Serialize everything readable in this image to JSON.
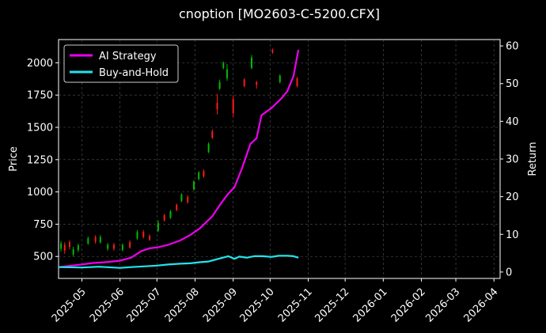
{
  "chart_data": {
    "type": "line",
    "title": "cnoption [MO2603-C-5200.CFX]",
    "ylabel_left": "Price",
    "ylabel_right": "Return",
    "x_ticks": [
      "2025-05",
      "2025-06",
      "2025-07",
      "2025-08",
      "2025-09",
      "2025-10",
      "2025-11",
      "2025-12",
      "2026-01",
      "2026-02",
      "2026-03",
      "2026-04"
    ],
    "x_range": [
      "2025-04-12",
      "2026-04-06"
    ],
    "y_left_ticks": [
      500,
      750,
      1000,
      1250,
      1500,
      1750,
      2000
    ],
    "y_left_range": [
      330,
      2180
    ],
    "y_right_ticks": [
      0,
      10,
      20,
      30,
      40,
      50,
      60
    ],
    "y_right_range": [
      -1.7,
      61.7
    ],
    "grid": true,
    "legend_position": "top-left",
    "colors": {
      "ai_strategy": "#ee00ee",
      "buy_and_hold": "#22e5ee",
      "candle_up": "#00bb00",
      "candle_down": "#ff1a1a"
    },
    "series": [
      {
        "name": "AI Strategy",
        "axis": "right",
        "x": [
          "2025-04-12",
          "2025-05-01",
          "2025-05-10",
          "2025-05-20",
          "2025-06-01",
          "2025-06-10",
          "2025-06-18",
          "2025-06-25",
          "2025-07-01",
          "2025-07-10",
          "2025-07-20",
          "2025-07-28",
          "2025-08-05",
          "2025-08-15",
          "2025-08-22",
          "2025-08-28",
          "2025-09-02",
          "2025-09-08",
          "2025-09-15",
          "2025-09-20",
          "2025-09-24",
          "2025-10-02",
          "2025-10-10",
          "2025-10-15",
          "2025-10-20",
          "2025-10-24"
        ],
        "y": [
          1.3,
          2.0,
          2.4,
          2.6,
          3.0,
          3.8,
          5.5,
          6.3,
          6.5,
          7.2,
          8.4,
          9.8,
          11.6,
          14.8,
          18.2,
          20.8,
          22.5,
          27.4,
          34.0,
          35.5,
          41.6,
          43.5,
          46.0,
          48.0,
          52.0,
          59.0
        ]
      },
      {
        "name": "Buy-and-Hold",
        "axis": "right",
        "x": [
          "2025-04-12",
          "2025-05-01",
          "2025-05-15",
          "2025-06-01",
          "2025-06-10",
          "2025-06-20",
          "2025-07-01",
          "2025-07-10",
          "2025-07-20",
          "2025-07-28",
          "2025-08-05",
          "2025-08-12",
          "2025-08-20",
          "2025-08-28",
          "2025-09-02",
          "2025-09-06",
          "2025-09-12",
          "2025-09-18",
          "2025-09-25",
          "2025-10-02",
          "2025-10-08",
          "2025-10-15",
          "2025-10-20",
          "2025-10-24"
        ],
        "y": [
          1.3,
          1.2,
          1.4,
          1.1,
          1.3,
          1.5,
          1.7,
          2.0,
          2.2,
          2.3,
          2.6,
          2.8,
          3.5,
          4.2,
          3.5,
          4.1,
          3.8,
          4.2,
          4.2,
          4.0,
          4.3,
          4.3,
          4.2,
          3.8
        ]
      }
    ],
    "candles": [
      {
        "date": "2025-04-14",
        "open": 560,
        "close": 600,
        "high": 620,
        "low": 540
      },
      {
        "date": "2025-04-17",
        "open": 590,
        "close": 545,
        "high": 610,
        "low": 520
      },
      {
        "date": "2025-04-21",
        "open": 610,
        "close": 575,
        "high": 625,
        "low": 555
      },
      {
        "date": "2025-04-24",
        "open": 515,
        "close": 555,
        "high": 575,
        "low": 500
      },
      {
        "date": "2025-04-28",
        "open": 550,
        "close": 585,
        "high": 600,
        "low": 535
      },
      {
        "date": "2025-05-06",
        "open": 600,
        "close": 640,
        "high": 655,
        "low": 590
      },
      {
        "date": "2025-05-12",
        "open": 650,
        "close": 615,
        "high": 665,
        "low": 600
      },
      {
        "date": "2025-05-16",
        "open": 610,
        "close": 650,
        "high": 665,
        "low": 600
      },
      {
        "date": "2025-05-22",
        "open": 560,
        "close": 590,
        "high": 605,
        "low": 545
      },
      {
        "date": "2025-05-27",
        "open": 590,
        "close": 560,
        "high": 605,
        "low": 545
      },
      {
        "date": "2025-06-03",
        "open": 550,
        "close": 590,
        "high": 600,
        "low": 540
      },
      {
        "date": "2025-06-09",
        "open": 610,
        "close": 570,
        "high": 625,
        "low": 560
      },
      {
        "date": "2025-06-15",
        "open": 640,
        "close": 690,
        "high": 705,
        "low": 630
      },
      {
        "date": "2025-06-20",
        "open": 690,
        "close": 650,
        "high": 705,
        "low": 640
      },
      {
        "date": "2025-06-25",
        "open": 660,
        "close": 630,
        "high": 670,
        "low": 620
      },
      {
        "date": "2025-07-02",
        "open": 700,
        "close": 760,
        "high": 780,
        "low": 690
      },
      {
        "date": "2025-07-07",
        "open": 820,
        "close": 780,
        "high": 830,
        "low": 770
      },
      {
        "date": "2025-07-12",
        "open": 800,
        "close": 850,
        "high": 860,
        "low": 790
      },
      {
        "date": "2025-07-17",
        "open": 900,
        "close": 860,
        "high": 910,
        "low": 850
      },
      {
        "date": "2025-07-21",
        "open": 930,
        "close": 980,
        "high": 990,
        "low": 920
      },
      {
        "date": "2025-07-26",
        "open": 960,
        "close": 920,
        "high": 975,
        "low": 910
      },
      {
        "date": "2025-07-31",
        "open": 1020,
        "close": 1080,
        "high": 1090,
        "low": 1010
      },
      {
        "date": "2025-08-04",
        "open": 1100,
        "close": 1150,
        "high": 1160,
        "low": 1090
      },
      {
        "date": "2025-08-08",
        "open": 1160,
        "close": 1120,
        "high": 1175,
        "low": 1110
      },
      {
        "date": "2025-08-12",
        "open": 1310,
        "close": 1370,
        "high": 1385,
        "low": 1300
      },
      {
        "date": "2025-08-15",
        "open": 1470,
        "close": 1420,
        "high": 1485,
        "low": 1410
      },
      {
        "date": "2025-08-19",
        "open": 1690,
        "close": 1640,
        "high": 1760,
        "low": 1600
      },
      {
        "date": "2025-08-21",
        "open": 1800,
        "close": 1850,
        "high": 1870,
        "low": 1790
      },
      {
        "date": "2025-08-24",
        "open": 1960,
        "close": 2000,
        "high": 2010,
        "low": 1950
      },
      {
        "date": "2025-08-27",
        "open": 1880,
        "close": 1950,
        "high": 1990,
        "low": 1860
      },
      {
        "date": "2025-09-01",
        "open": 1720,
        "close": 1610,
        "high": 1750,
        "low": 1580
      },
      {
        "date": "2025-09-10",
        "open": 1870,
        "close": 1820,
        "high": 1880,
        "low": 1810
      },
      {
        "date": "2025-09-16",
        "open": 1960,
        "close": 2040,
        "high": 2060,
        "low": 1950
      },
      {
        "date": "2025-09-20",
        "open": 1850,
        "close": 1830,
        "high": 1860,
        "low": 1800
      },
      {
        "date": "2025-10-03",
        "open": 2100,
        "close": 2080,
        "high": 2110,
        "low": 2070
      },
      {
        "date": "2025-10-09",
        "open": 1850,
        "close": 1900,
        "high": 1910,
        "low": 1840
      },
      {
        "date": "2025-10-23",
        "open": 1880,
        "close": 1820,
        "high": 1890,
        "low": 1810
      }
    ]
  }
}
